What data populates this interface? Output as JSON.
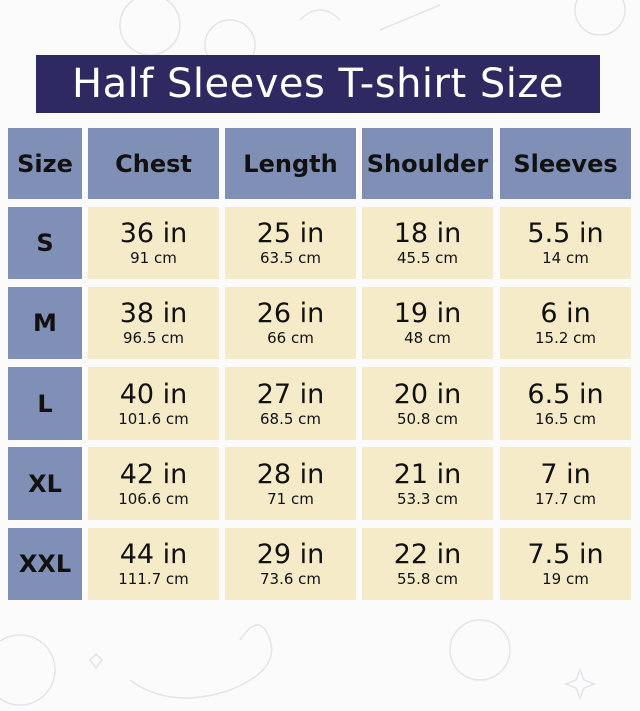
{
  "title": "Half Sleeves T-shirt Size",
  "colors": {
    "title_bg": "#2e2a61",
    "header_bg": "#7f8fb5",
    "cell_bg": "#f5ebc9"
  },
  "headers": [
    "Size",
    "Chest",
    "Length",
    "Shoulder",
    "Sleeves"
  ],
  "rows": [
    {
      "size": "S",
      "values": [
        {
          "in": "36 in",
          "cm": "91 cm"
        },
        {
          "in": "25 in",
          "cm": "63.5 cm"
        },
        {
          "in": "18 in",
          "cm": "45.5 cm"
        },
        {
          "in": "5.5 in",
          "cm": "14 cm"
        }
      ]
    },
    {
      "size": "M",
      "values": [
        {
          "in": "38 in",
          "cm": "96.5 cm"
        },
        {
          "in": "26 in",
          "cm": "66 cm"
        },
        {
          "in": "19 in",
          "cm": "48 cm"
        },
        {
          "in": "6 in",
          "cm": "15.2 cm"
        }
      ]
    },
    {
      "size": "L",
      "values": [
        {
          "in": "40 in",
          "cm": "101.6 cm"
        },
        {
          "in": "27 in",
          "cm": "68.5 cm"
        },
        {
          "in": "20 in",
          "cm": "50.8 cm"
        },
        {
          "in": "6.5 in",
          "cm": "16.5 cm"
        }
      ]
    },
    {
      "size": "XL",
      "values": [
        {
          "in": "42 in",
          "cm": "106.6 cm"
        },
        {
          "in": "28 in",
          "cm": "71 cm"
        },
        {
          "in": "21 in",
          "cm": "53.3 cm"
        },
        {
          "in": "7 in",
          "cm": "17.7 cm"
        }
      ]
    },
    {
      "size": "XXL",
      "values": [
        {
          "in": "44 in",
          "cm": "111.7 cm"
        },
        {
          "in": "29 in",
          "cm": "73.6 cm"
        },
        {
          "in": "22 in",
          "cm": "55.8 cm"
        },
        {
          "in": "7.5 in",
          "cm": "19 cm"
        }
      ]
    }
  ]
}
